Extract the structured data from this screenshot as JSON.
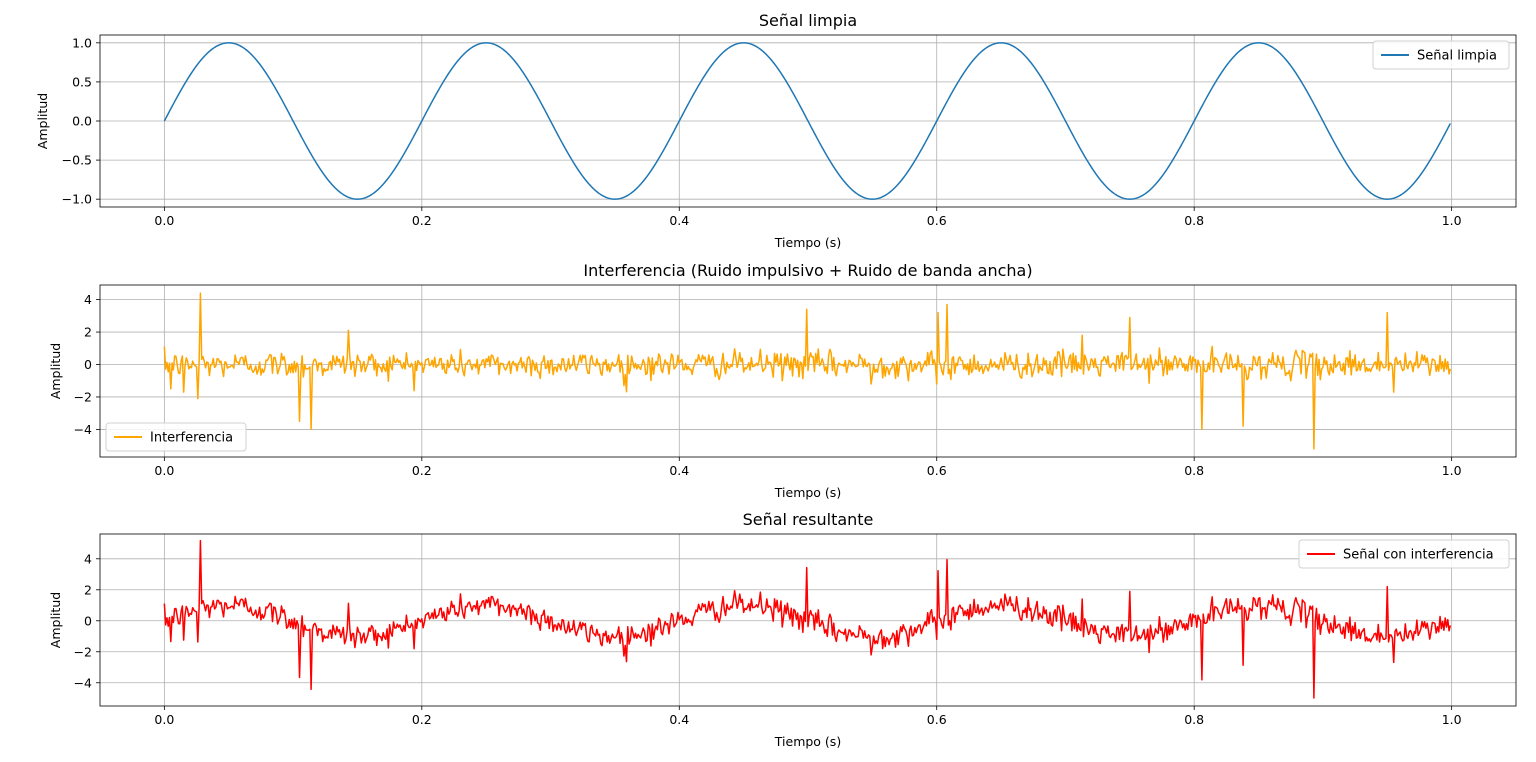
{
  "chart_data": [
    {
      "type": "line",
      "title": "Señal limpia",
      "xlabel": "Tiempo (s)",
      "ylabel": "Amplitud",
      "xlim": [
        -0.05,
        1.05
      ],
      "ylim": [
        -1.1,
        1.1
      ],
      "xticks": [
        "0.0",
        "0.2",
        "0.4",
        "0.6",
        "0.8",
        "1.0"
      ],
      "yticks": [
        "1.0",
        "0.5",
        "0.0",
        "−0.5",
        "−1.0"
      ],
      "grid": true,
      "legend_position": "upper right",
      "series": [
        {
          "name": "Señal limpia",
          "color": "#1f77b4",
          "function": "sin(2*pi*5*t)",
          "t_range": [
            0,
            0.999
          ],
          "samples": 1000
        }
      ]
    },
    {
      "type": "line",
      "title": "Interferencia (Ruido impulsivo + Ruido de banda ancha)",
      "xlabel": "Tiempo (s)",
      "ylabel": "Amplitud",
      "xlim": [
        -0.05,
        1.05
      ],
      "ylim": [
        -5.7,
        4.9
      ],
      "xticks": [
        "0.0",
        "0.2",
        "0.4",
        "0.6",
        "0.8",
        "1.0"
      ],
      "yticks": [
        "4",
        "2",
        "0",
        "−2",
        "−4"
      ],
      "grid": true,
      "legend_position": "lower left",
      "series": [
        {
          "name": "Interferencia",
          "color": "#ffa500",
          "description": "broadband noise (amplitude ~±1) with impulsive spikes",
          "noise_std": 0.4,
          "samples": 1000,
          "impulses": [
            [
              0.005,
              -1.5
            ],
            [
              0.015,
              -1.7
            ],
            [
              0.026,
              -2.1
            ],
            [
              0.028,
              4.4
            ],
            [
              0.105,
              -3.5
            ],
            [
              0.114,
              -4.0
            ],
            [
              0.143,
              2.1
            ],
            [
              0.357,
              -1.3
            ],
            [
              0.499,
              3.4
            ],
            [
              0.549,
              -1.2
            ],
            [
              0.601,
              3.2
            ],
            [
              0.608,
              3.7
            ],
            [
              0.6,
              -1.2
            ],
            [
              0.713,
              1.8
            ],
            [
              0.75,
              2.9
            ],
            [
              0.806,
              -4.0
            ],
            [
              0.838,
              -3.8
            ],
            [
              0.893,
              -5.2
            ],
            [
              0.95,
              3.2
            ],
            [
              0.955,
              -1.7
            ]
          ]
        }
      ]
    },
    {
      "type": "line",
      "title": "Señal resultante",
      "xlabel": "Tiempo (s)",
      "ylabel": "Amplitud",
      "xlim": [
        -0.05,
        1.05
      ],
      "ylim": [
        -5.5,
        5.6
      ],
      "xticks": [
        "0.0",
        "0.2",
        "0.4",
        "0.6",
        "0.8",
        "1.0"
      ],
      "yticks": [
        "4",
        "2",
        "0",
        "−2",
        "−4"
      ],
      "grid": true,
      "legend_position": "upper right",
      "series": [
        {
          "name": "Señal con interferencia",
          "color": "#ff0000",
          "description": "Señal limpia + Interferencia",
          "samples": 1000
        }
      ]
    }
  ]
}
